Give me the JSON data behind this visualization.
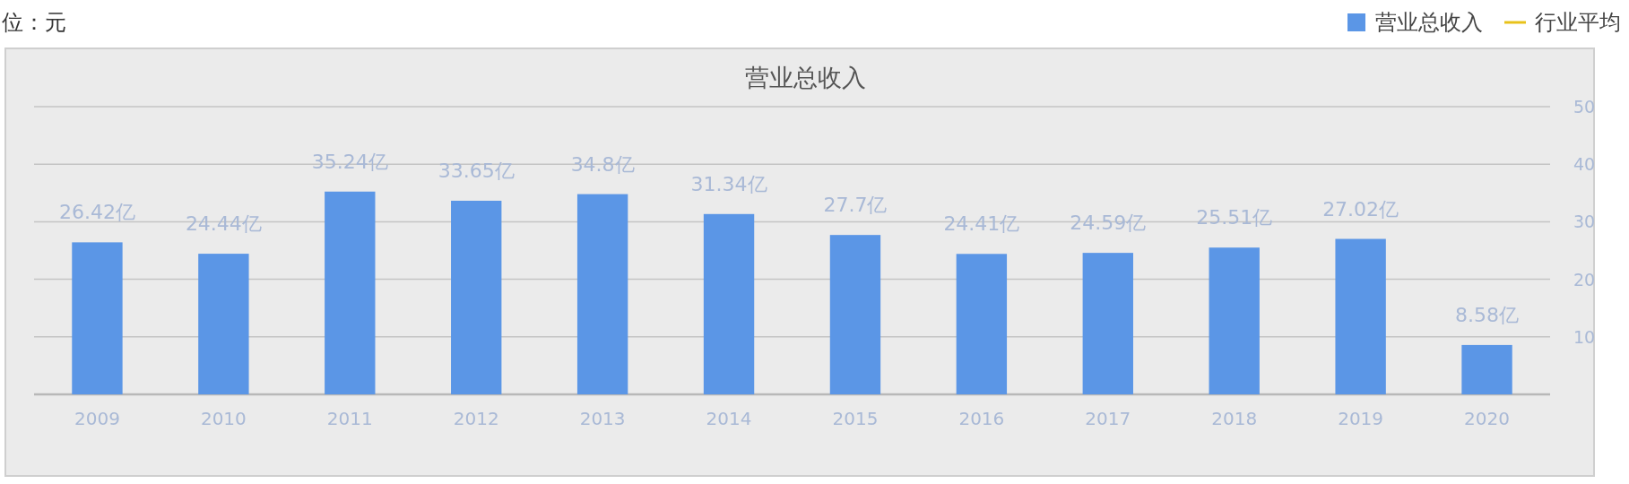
{
  "chart_data": {
    "type": "bar",
    "title": "营业总收入",
    "annotations": [
      "位：元"
    ],
    "categories": [
      "2009",
      "2010",
      "2011",
      "2012",
      "2013",
      "2014",
      "2015",
      "2016",
      "2017",
      "2018",
      "2019",
      "2020"
    ],
    "series": [
      {
        "name": "营业总收入",
        "color": "#5b96e6",
        "values": [
          26.42,
          24.44,
          35.24,
          33.65,
          34.8,
          31.34,
          27.7,
          24.41,
          24.59,
          25.51,
          27.02,
          8.58
        ],
        "value_labels": [
          "26.42亿",
          "24.44亿",
          "35.24亿",
          "33.65亿",
          "34.8亿",
          "31.34亿",
          "27.7亿",
          "24.41亿",
          "24.59亿",
          "25.51亿",
          "27.02亿",
          "8.58亿"
        ]
      },
      {
        "name": "行业平均",
        "type": "line",
        "color": "#e8c21a",
        "values": [
          null,
          null,
          null,
          null,
          null,
          null,
          null,
          null,
          null,
          null,
          null,
          null
        ]
      }
    ],
    "ylim": [
      0,
      50
    ],
    "yticks": [
      10,
      20,
      30,
      40,
      50
    ],
    "grid": "y",
    "legend": "top right"
  }
}
